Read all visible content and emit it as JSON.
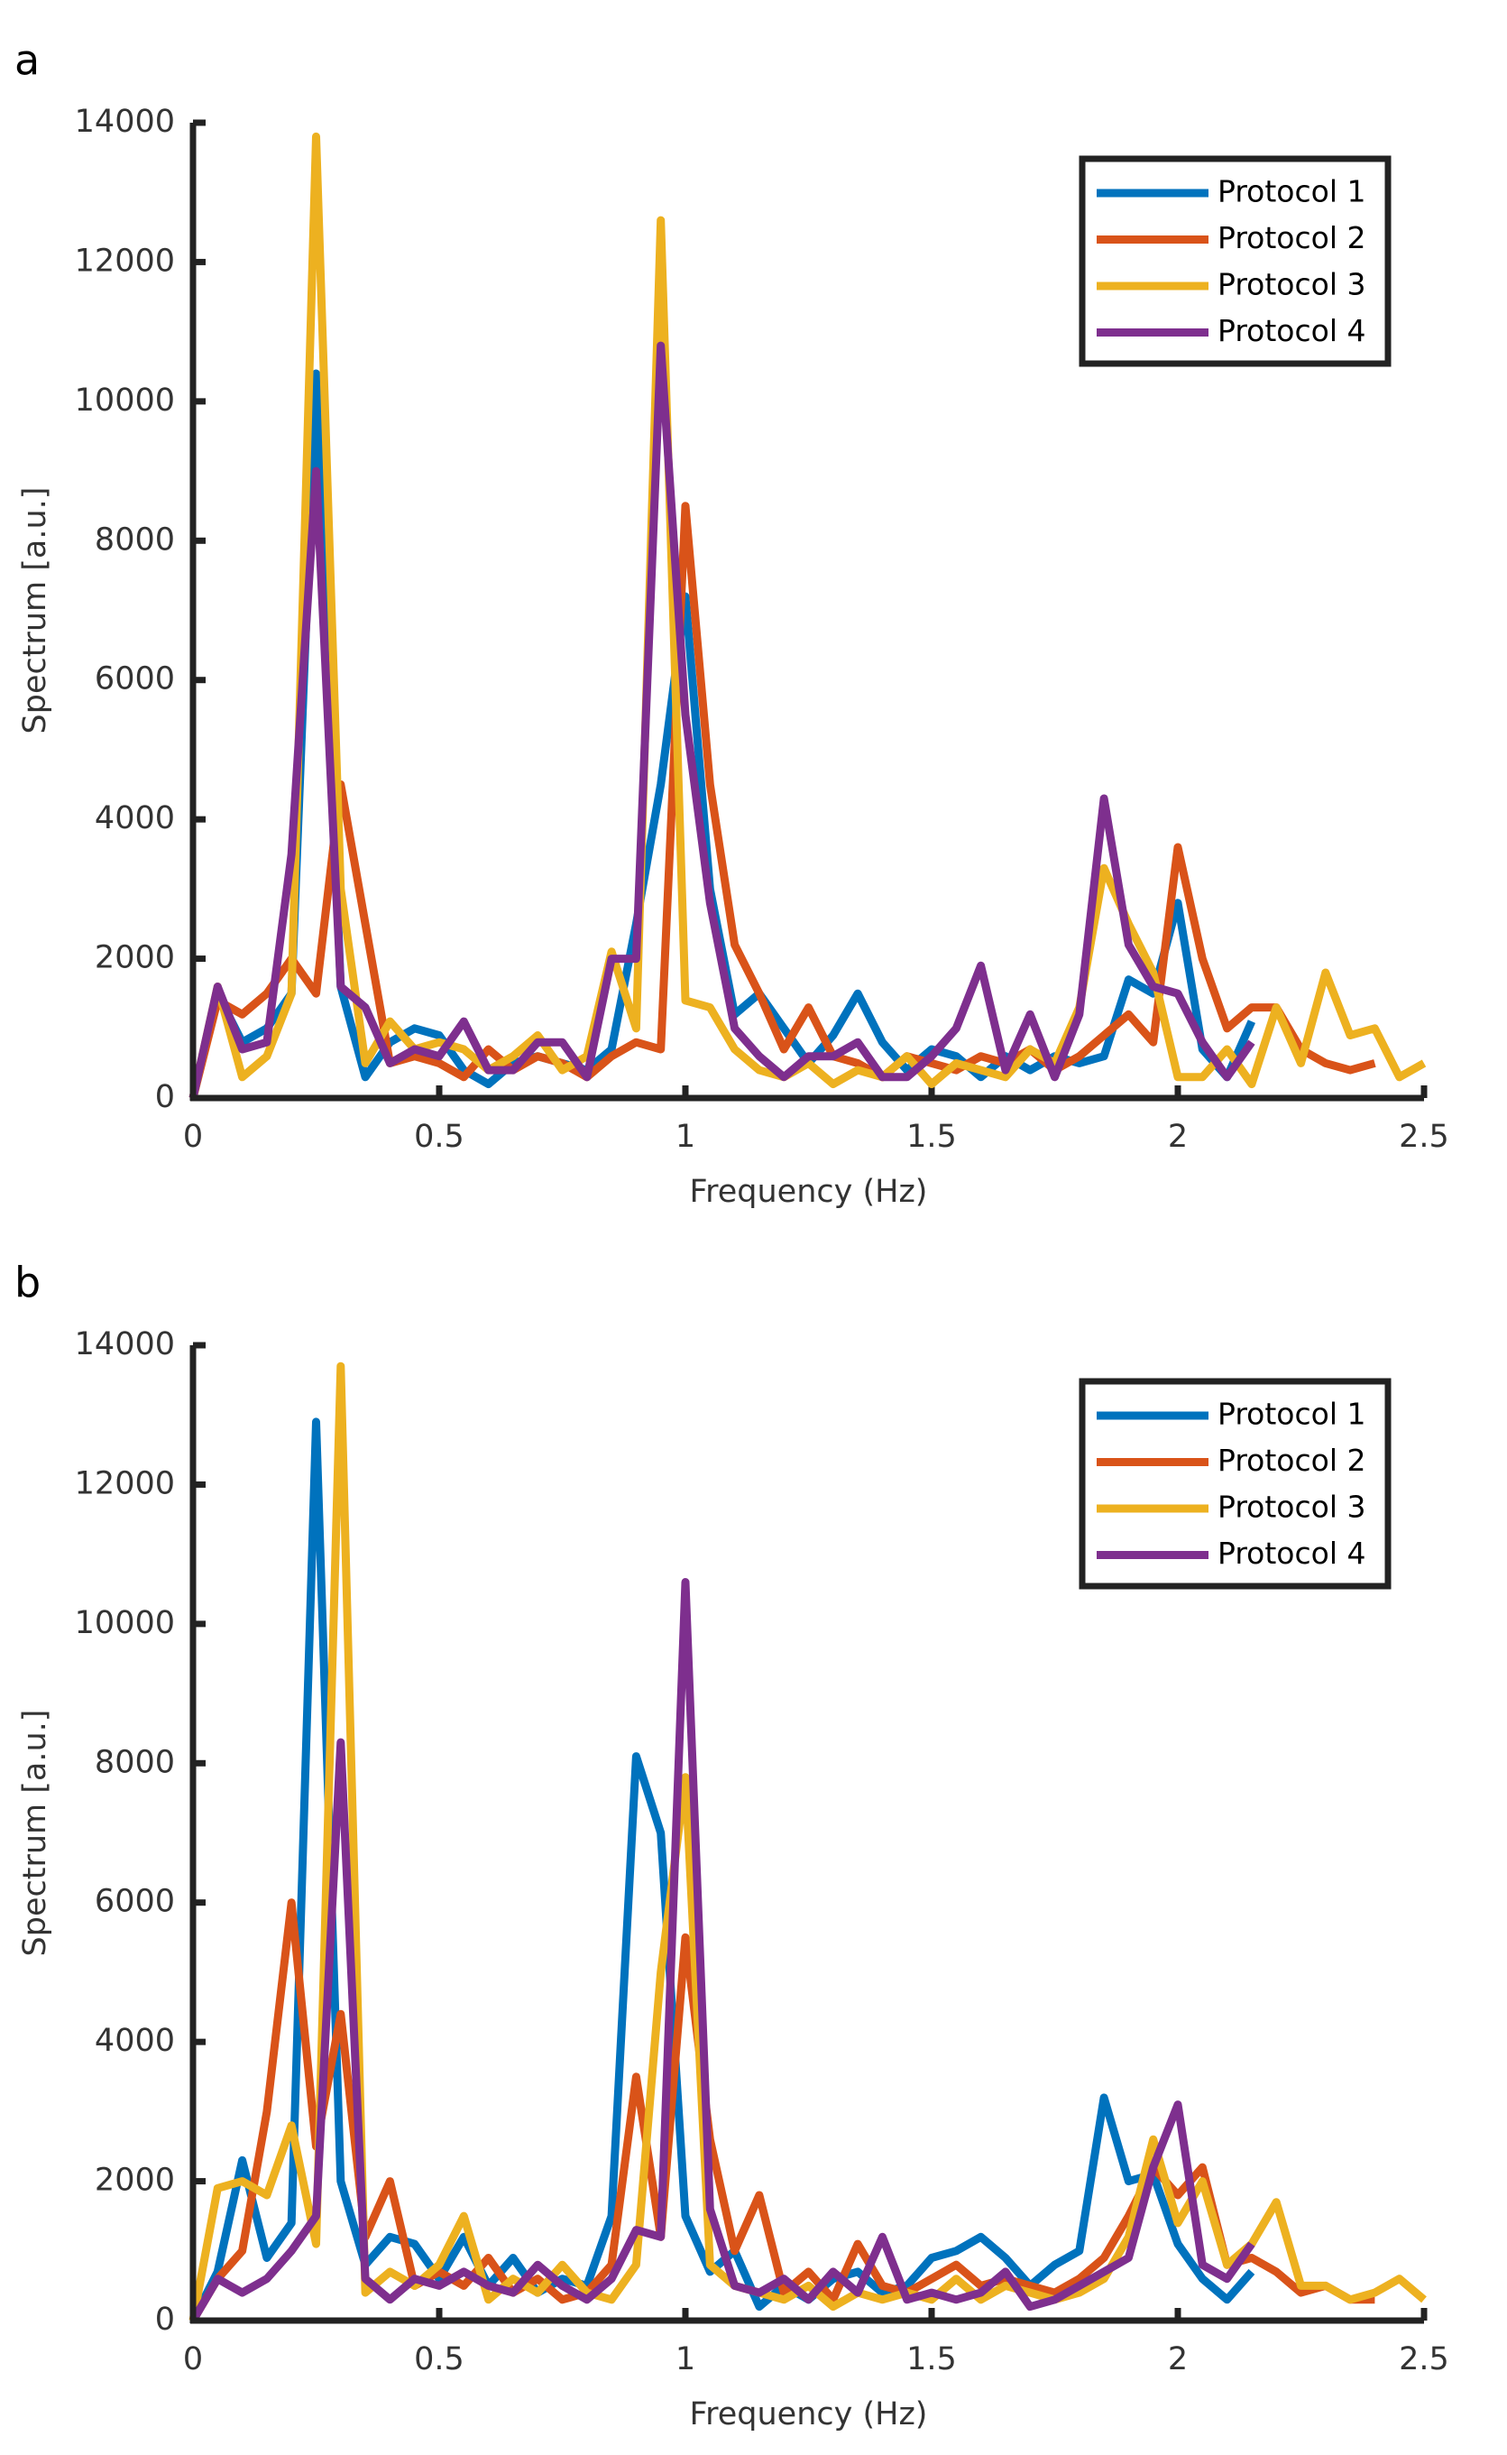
{
  "chart_data": [
    {
      "type": "line",
      "panel_label": "a",
      "xlabel": "Frequency (Hz)",
      "ylabel": "Spectrum [a.u.]",
      "xlim": [
        0,
        2.5
      ],
      "ylim": [
        0,
        14000
      ],
      "xticks": [
        0,
        0.5,
        1,
        1.5,
        2,
        2.5
      ],
      "yticks": [
        0,
        2000,
        4000,
        6000,
        8000,
        10000,
        12000,
        14000
      ],
      "legend": "upper right",
      "x": [
        0,
        0.05,
        0.1,
        0.15,
        0.2,
        0.25,
        0.3,
        0.35,
        0.4,
        0.45,
        0.5,
        0.55,
        0.6,
        0.65,
        0.7,
        0.75,
        0.8,
        0.85,
        0.9,
        0.95,
        1,
        1.05,
        1.1,
        1.15,
        1.2,
        1.25,
        1.3,
        1.35,
        1.4,
        1.45,
        1.5,
        1.55,
        1.6,
        1.65,
        1.7,
        1.75,
        1.8,
        1.85,
        1.9,
        1.95,
        2,
        2.05,
        2.1,
        2.15,
        2.2,
        2.25,
        2.3,
        2.35,
        2.4,
        2.45,
        2.5
      ],
      "series": [
        {
          "name": "Protocol 1",
          "color": "#0072BD",
          "values": [
            0,
            1500,
            800,
            1000,
            1500,
            10400,
            1600,
            300,
            800,
            1000,
            900,
            400,
            200,
            500,
            600,
            500,
            400,
            700,
            2500,
            4500,
            7200,
            3000,
            1200,
            1500,
            1000,
            500,
            900,
            1500,
            800,
            400,
            700,
            600,
            300,
            600,
            400,
            600,
            500,
            600,
            1700,
            1500,
            2800,
            700,
            300,
            1100,
            null,
            null,
            null,
            null,
            null,
            null,
            null
          ]
        },
        {
          "name": "Protocol 2",
          "color": "#D95319",
          "values": [
            0,
            1400,
            1200,
            1500,
            2000,
            1500,
            4500,
            2500,
            500,
            600,
            500,
            300,
            700,
            400,
            600,
            500,
            300,
            600,
            800,
            700,
            8500,
            4500,
            2200,
            1500,
            700,
            1300,
            600,
            500,
            300,
            600,
            500,
            400,
            600,
            500,
            700,
            400,
            600,
            900,
            1200,
            800,
            3600,
            2000,
            1000,
            1300,
            1300,
            700,
            500,
            400,
            500,
            null,
            null
          ]
        },
        {
          "name": "Protocol 3",
          "color": "#EDB120",
          "values": [
            0,
            1600,
            300,
            600,
            1500,
            13800,
            3000,
            500,
            1100,
            700,
            800,
            700,
            400,
            600,
            900,
            400,
            600,
            2100,
            1000,
            12600,
            1400,
            1300,
            700,
            400,
            300,
            500,
            200,
            400,
            300,
            600,
            200,
            500,
            400,
            300,
            700,
            500,
            1300,
            3300,
            2500,
            1800,
            300,
            300,
            700,
            200,
            1300,
            500,
            1800,
            900,
            1000,
            300,
            500
          ]
        },
        {
          "name": "Protocol 4",
          "color": "#7E2F8E",
          "values": [
            0,
            1600,
            700,
            800,
            3500,
            9000,
            1600,
            1300,
            500,
            700,
            600,
            1100,
            400,
            400,
            800,
            800,
            300,
            2000,
            2000,
            10800,
            5500,
            2800,
            1000,
            600,
            300,
            600,
            600,
            800,
            300,
            300,
            600,
            1000,
            1900,
            400,
            1200,
            300,
            1200,
            4300,
            2200,
            1600,
            1500,
            800,
            300,
            800,
            null,
            null,
            null,
            null,
            null,
            null,
            null
          ]
        }
      ]
    },
    {
      "type": "line",
      "panel_label": "b",
      "xlabel": "Frequency (Hz)",
      "ylabel": "Spectrum [a.u.]",
      "xlim": [
        0,
        2.5
      ],
      "ylim": [
        0,
        14000
      ],
      "xticks": [
        0,
        0.5,
        1,
        1.5,
        2,
        2.5
      ],
      "yticks": [
        0,
        2000,
        4000,
        6000,
        8000,
        10000,
        12000,
        14000
      ],
      "legend": "upper right",
      "x": [
        0,
        0.05,
        0.1,
        0.15,
        0.2,
        0.25,
        0.3,
        0.35,
        0.4,
        0.45,
        0.5,
        0.55,
        0.6,
        0.65,
        0.7,
        0.75,
        0.8,
        0.85,
        0.9,
        0.95,
        1,
        1.05,
        1.1,
        1.15,
        1.2,
        1.25,
        1.3,
        1.35,
        1.4,
        1.45,
        1.5,
        1.55,
        1.6,
        1.65,
        1.7,
        1.75,
        1.8,
        1.85,
        1.9,
        1.95,
        2,
        2.05,
        2.1,
        2.15,
        2.2,
        2.25,
        2.3,
        2.35,
        2.4,
        2.45,
        2.5
      ],
      "series": [
        {
          "name": "Protocol 1",
          "color": "#0072BD",
          "values": [
            0,
            700,
            2300,
            900,
            1400,
            12900,
            2000,
            800,
            1200,
            1100,
            600,
            1200,
            500,
            900,
            400,
            600,
            500,
            1500,
            8100,
            7000,
            1500,
            700,
            1000,
            200,
            500,
            300,
            600,
            700,
            400,
            500,
            900,
            1000,
            1200,
            900,
            500,
            800,
            1000,
            3200,
            2000,
            2100,
            1100,
            600,
            300,
            700,
            null,
            null,
            null,
            null,
            null,
            null,
            null
          ]
        },
        {
          "name": "Protocol 2",
          "color": "#D95319",
          "values": [
            0,
            600,
            1000,
            3000,
            6000,
            2500,
            4400,
            1200,
            2000,
            500,
            700,
            500,
            900,
            400,
            600,
            300,
            400,
            800,
            3500,
            1200,
            5500,
            2600,
            1000,
            1800,
            400,
            700,
            300,
            1100,
            500,
            400,
            600,
            800,
            500,
            600,
            500,
            400,
            600,
            900,
            1500,
            2200,
            1800,
            2200,
            800,
            900,
            700,
            400,
            500,
            300,
            300,
            null,
            null
          ]
        },
        {
          "name": "Protocol 3",
          "color": "#EDB120",
          "values": [
            0,
            1900,
            2000,
            1800,
            2800,
            1100,
            13700,
            400,
            700,
            500,
            800,
            1500,
            300,
            600,
            400,
            800,
            400,
            300,
            800,
            5000,
            7800,
            800,
            500,
            400,
            300,
            500,
            200,
            400,
            300,
            400,
            300,
            600,
            300,
            500,
            400,
            300,
            400,
            600,
            1200,
            2600,
            1400,
            2000,
            800,
            1100,
            1700,
            500,
            500,
            300,
            400,
            600,
            300
          ]
        },
        {
          "name": "Protocol 4",
          "color": "#7E2F8E",
          "values": [
            0,
            600,
            400,
            600,
            1000,
            1500,
            8300,
            600,
            300,
            600,
            500,
            700,
            500,
            400,
            800,
            500,
            300,
            600,
            1300,
            1200,
            10600,
            1600,
            500,
            400,
            600,
            300,
            700,
            400,
            1200,
            300,
            400,
            300,
            400,
            700,
            200,
            300,
            500,
            700,
            900,
            2200,
            3100,
            800,
            600,
            1100,
            null,
            null,
            null,
            null,
            null,
            null,
            null
          ]
        }
      ]
    }
  ]
}
